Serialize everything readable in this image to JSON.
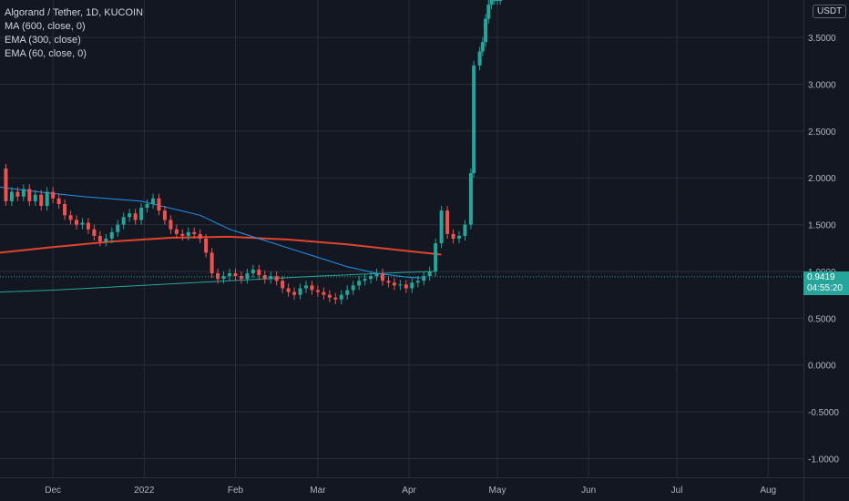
{
  "legend": {
    "title": "Algorand / Tether, 1D, KUCOIN",
    "indicators": [
      "MA (600, close, 0)",
      "EMA (300, close)",
      "EMA (60, close, 0)"
    ]
  },
  "currency": "USDT",
  "last_price": {
    "value": "0.9419",
    "countdown": "04:55:20"
  },
  "colors": {
    "background": "#131722",
    "up": "#26a69a",
    "down": "#ef5350",
    "ma600": "#e1442c",
    "ema300": "#26a69a",
    "ema60": "#2196f3",
    "grid": "#2a2e39",
    "axis_text": "#b2b5be"
  },
  "chart_data": {
    "type": "line",
    "title": "Algorand / Tether, 1D, KUCOIN",
    "ylim": [
      -1.2,
      3.9
    ],
    "y_ticks": [
      "3.5000",
      "3.0000",
      "2.5000",
      "2.0000",
      "1.5000",
      "1.0000",
      "0.5000",
      "0.0000",
      "-0.5000",
      "-1.0000"
    ],
    "y_tick_values": [
      3.5,
      3.0,
      2.5,
      2.0,
      1.5,
      1.0,
      0.5,
      0.0,
      -0.5,
      -1.0
    ],
    "x_ticks": [
      "Dec",
      "2022",
      "Feb",
      "Mar",
      "Apr",
      "May",
      "Jun",
      "Jul",
      "Aug"
    ],
    "x_tick_days": [
      0,
      31,
      62,
      90,
      121,
      151,
      182,
      212,
      243
    ],
    "x_range_days": [
      -18,
      255
    ],
    "grid": true,
    "last_price": 0.9419,
    "price_series": {
      "name": "ALGO/USDT",
      "x_days": [
        -18,
        -16,
        -14,
        -12,
        -10,
        -8,
        -6,
        -4,
        -2,
        0,
        2,
        4,
        6,
        8,
        10,
        12,
        14,
        16,
        18,
        20,
        22,
        24,
        26,
        28,
        30,
        32,
        34,
        36,
        38,
        40,
        42,
        44,
        46,
        48,
        50,
        52,
        54,
        56,
        58,
        60,
        62,
        64,
        66,
        68,
        70,
        72,
        74,
        76,
        78,
        80,
        82,
        84,
        86,
        88,
        90,
        92,
        94,
        96,
        98,
        100,
        102,
        104,
        106,
        108,
        110,
        112,
        114,
        116,
        118,
        120,
        122,
        124,
        126,
        128,
        130,
        132,
        134,
        136,
        138,
        140,
        142,
        143,
        145,
        146,
        147,
        148,
        149,
        150,
        151,
        152
      ],
      "y": [
        2.1,
        1.75,
        1.85,
        1.8,
        1.88,
        1.75,
        1.82,
        1.7,
        1.85,
        1.78,
        1.72,
        1.6,
        1.55,
        1.5,
        1.52,
        1.45,
        1.38,
        1.32,
        1.35,
        1.42,
        1.5,
        1.58,
        1.62,
        1.55,
        1.68,
        1.72,
        1.78,
        1.65,
        1.55,
        1.45,
        1.4,
        1.38,
        1.42,
        1.4,
        1.35,
        1.2,
        0.98,
        0.92,
        0.95,
        0.98,
        0.95,
        0.92,
        0.98,
        1.02,
        0.96,
        0.92,
        0.95,
        0.9,
        0.82,
        0.78,
        0.75,
        0.82,
        0.85,
        0.8,
        0.78,
        0.75,
        0.72,
        0.7,
        0.75,
        0.8,
        0.85,
        0.9,
        0.92,
        0.95,
        0.98,
        0.9,
        0.88,
        0.85,
        0.86,
        0.82,
        0.88,
        0.9,
        0.95,
        1.0,
        1.3,
        1.65,
        1.4,
        1.35,
        1.38,
        1.5,
        2.05,
        3.2,
        3.35,
        3.45,
        3.7,
        3.85,
        3.9,
        3.9,
        3.9,
        3.9
      ]
    },
    "series": [
      {
        "name": "MA (600, close, 0)",
        "x_days": [
          -18,
          0,
          20,
          40,
          60,
          80,
          100,
          120,
          132
        ],
        "y": [
          1.2,
          1.26,
          1.32,
          1.36,
          1.37,
          1.34,
          1.29,
          1.22,
          1.18
        ]
      },
      {
        "name": "EMA (300, close)",
        "x_days": [
          -18,
          0,
          30,
          60,
          90,
          120,
          130
        ],
        "y": [
          0.78,
          0.8,
          0.85,
          0.9,
          0.95,
          0.99,
          1.0
        ]
      },
      {
        "name": "EMA (60, close, 0)",
        "x_days": [
          -18,
          -5,
          10,
          30,
          50,
          60,
          70,
          80,
          90,
          100,
          110,
          120,
          125
        ],
        "y": [
          1.9,
          1.85,
          1.8,
          1.75,
          1.6,
          1.45,
          1.35,
          1.25,
          1.15,
          1.05,
          0.98,
          0.94,
          0.93
        ]
      }
    ]
  }
}
